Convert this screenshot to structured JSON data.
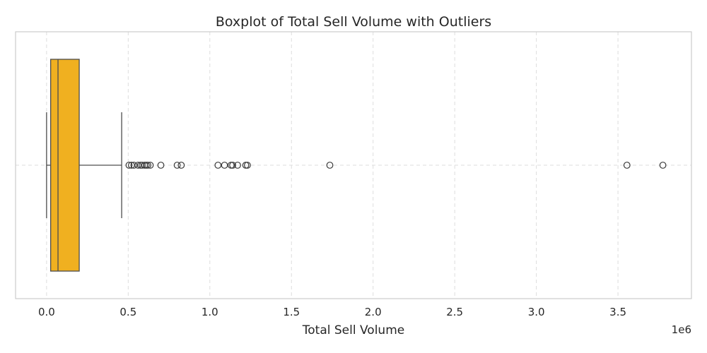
{
  "chart_data": {
    "type": "boxplot",
    "title": "Boxplot of Total Sell Volume with Outliers",
    "xlabel": "Total Sell Volume",
    "ylabel": "",
    "x_offset_label": "1e6",
    "xlim": [
      -0.19,
      3.95
    ],
    "x_ticks": [
      0.0,
      0.5,
      1.0,
      1.5,
      2.0,
      2.5,
      3.0,
      3.5
    ],
    "x_tick_labels": [
      "0.0",
      "0.5",
      "1.0",
      "1.5",
      "2.0",
      "2.5",
      "3.0",
      "3.5"
    ],
    "grid": true,
    "box": {
      "whisker_low": 0.0,
      "q1": 0.025,
      "median": 0.07,
      "q3": 0.2,
      "whisker_high": 0.46,
      "color": "#F0B020",
      "edge_color": "#4d4d4d"
    },
    "outliers": [
      0.505,
      0.52,
      0.535,
      0.56,
      0.575,
      0.585,
      0.6,
      0.61,
      0.62,
      0.635,
      0.7,
      0.8,
      0.825,
      1.05,
      1.09,
      1.13,
      1.14,
      1.17,
      1.22,
      1.23,
      1.735,
      3.555,
      3.775
    ],
    "colors": {
      "grid": "#dddddd",
      "frame": "#cccccc",
      "text": "#262626"
    }
  }
}
